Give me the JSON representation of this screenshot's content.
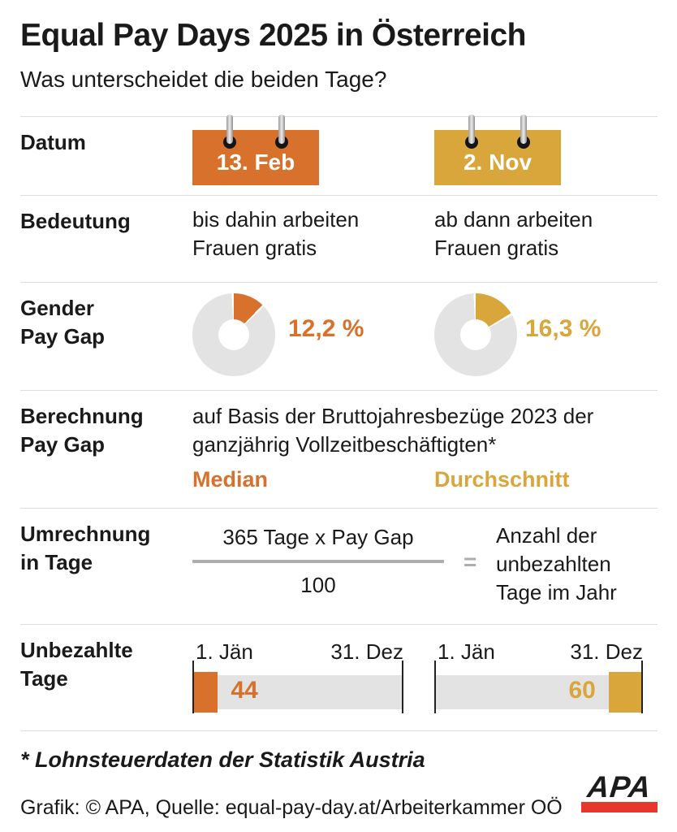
{
  "header": {
    "title": "Equal Pay Days 2025 in Österreich",
    "subtitle": "Was unterscheidet die beiden Tage?"
  },
  "colors": {
    "orange": "#D7712B",
    "gold": "#D8A63A",
    "chart_gray": "#E3E3E3",
    "divider": "#DDDDDD",
    "muted_gray": "#ADADAD",
    "apa_red": "#E8362D",
    "text": "#1A1A1A"
  },
  "rows": {
    "datum": {
      "label": "Datum",
      "left_date": "13. Feb",
      "right_date": "2. Nov"
    },
    "bedeutung": {
      "label": "Bedeutung",
      "left_text": "bis dahin arbeiten Frauen gratis",
      "right_text": "ab dann arbeiten Frauen gratis"
    },
    "gender_pay_gap": {
      "label": "Gender Pay Gap",
      "left_value": "12,2 %",
      "left_pct": 12.2,
      "right_value": "16,3 %",
      "right_pct": 16.3
    },
    "berechnung": {
      "label": "Berechnung Pay Gap",
      "text": "auf Basis der Bruttojahresbezüge 2023 der ganzjährig Vollzeitbeschäftigten*",
      "left_term": "Median",
      "right_term": "Durchschnitt"
    },
    "umrechnung": {
      "label": "Umrechnung in Tage",
      "numerator": "365 Tage x Pay Gap",
      "denominator": "100",
      "equals": "=",
      "result": "Anzahl der unbezahlten Tage im Jahr"
    },
    "unbezahlte": {
      "label": "Unbezahlte Tage",
      "start_label": "1. Jän",
      "end_label": "31. Dez",
      "left_days": 44,
      "right_days": 60,
      "year_days": 365
    }
  },
  "footer": {
    "footnote": "* Lohnsteuerdaten der Statistik Austria",
    "credit": "Grafik: © APA, Quelle: equal-pay-day.at/Arbeiterkammer OÖ",
    "logo": "APA"
  },
  "chart_data": [
    {
      "type": "pie",
      "donut": true,
      "title": "Gender Pay Gap – Median (Equal Pay Day 13. Feb)",
      "labels": [
        "Gender Pay Gap",
        "Rest"
      ],
      "values": [
        12.2,
        87.8
      ],
      "unit": "%",
      "colors": [
        "#D7712B",
        "#E3E3E3"
      ],
      "annotation": "12,2 %"
    },
    {
      "type": "pie",
      "donut": true,
      "title": "Gender Pay Gap – Durchschnitt (Equal Pay Day 2. Nov)",
      "labels": [
        "Gender Pay Gap",
        "Rest"
      ],
      "values": [
        16.3,
        83.7
      ],
      "unit": "%",
      "colors": [
        "#D8A63A",
        "#E3E3E3"
      ],
      "annotation": "16,3 %"
    },
    {
      "type": "bar",
      "title": "Unbezahlte Tage im Jahr",
      "categories": [
        "Equal Pay Day 13. Feb (Median)",
        "Equal Pay Day 2. Nov (Durchschnitt)"
      ],
      "values": [
        44,
        60
      ],
      "axis_range_labels": [
        "1. Jän",
        "31. Dez"
      ],
      "axis_max_days": 365,
      "colors": [
        "#D7712B",
        "#D8A63A"
      ]
    }
  ]
}
